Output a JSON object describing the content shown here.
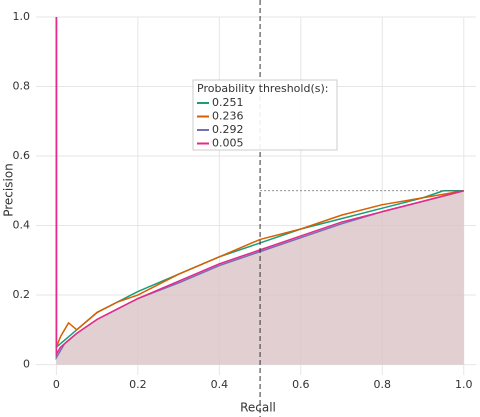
{
  "chart_data": {
    "type": "line",
    "x_label": "Recall",
    "y_label": "Precision",
    "legend_title": "Probability threshold(s):",
    "x": [
      0,
      0,
      0.01,
      0.02,
      0.03,
      0.05,
      0.1,
      0.15,
      0.2,
      0.3,
      0.4,
      0.5,
      0.6,
      0.7,
      0.8,
      0.9,
      0.95,
      1
    ],
    "series": [
      {
        "name": "0.251",
        "color": "#1b9e77",
        "values": [
          1,
          0.05,
          0.06,
          0.07,
          0.08,
          0.1,
          0.15,
          0.18,
          0.21,
          0.26,
          0.31,
          0.35,
          0.39,
          0.42,
          0.45,
          0.48,
          0.5,
          0.5
        ]
      },
      {
        "name": "0.236",
        "color": "#d95f02",
        "values": [
          1,
          0.05,
          0.08,
          0.1,
          0.12,
          0.1,
          0.15,
          0.18,
          0.2,
          0.26,
          0.31,
          0.36,
          0.39,
          0.43,
          0.46,
          0.48,
          0.49,
          0.5
        ]
      },
      {
        "name": "0.292",
        "color": "#7570b3",
        "values": [
          1,
          0.02,
          0.04,
          0.06,
          0.07,
          0.09,
          0.13,
          0.16,
          0.19,
          0.235,
          0.285,
          0.325,
          0.365,
          0.405,
          0.44,
          0.47,
          0.485,
          0.5
        ]
      },
      {
        "name": "0.005",
        "color": "#e7298a",
        "values": [
          1,
          0.03,
          0.05,
          0.06,
          0.07,
          0.09,
          0.13,
          0.16,
          0.19,
          0.24,
          0.29,
          0.33,
          0.37,
          0.41,
          0.44,
          0.47,
          0.485,
          0.5
        ]
      }
    ],
    "area_color": "#d9c3c6",
    "vline": 0.5,
    "hline": 0.5,
    "xlim": [
      -0.05,
      1.03
    ],
    "ylim": [
      -0.03,
      1.0
    ],
    "xticks": [
      0,
      0.2,
      0.4,
      0.6,
      0.8,
      {
        "value": 1,
        "label": "1.0"
      }
    ],
    "yticks": [
      0,
      0.2,
      0.4,
      0.6,
      0.8,
      {
        "value": 1,
        "label": "1.0"
      }
    ],
    "grid": true
  }
}
